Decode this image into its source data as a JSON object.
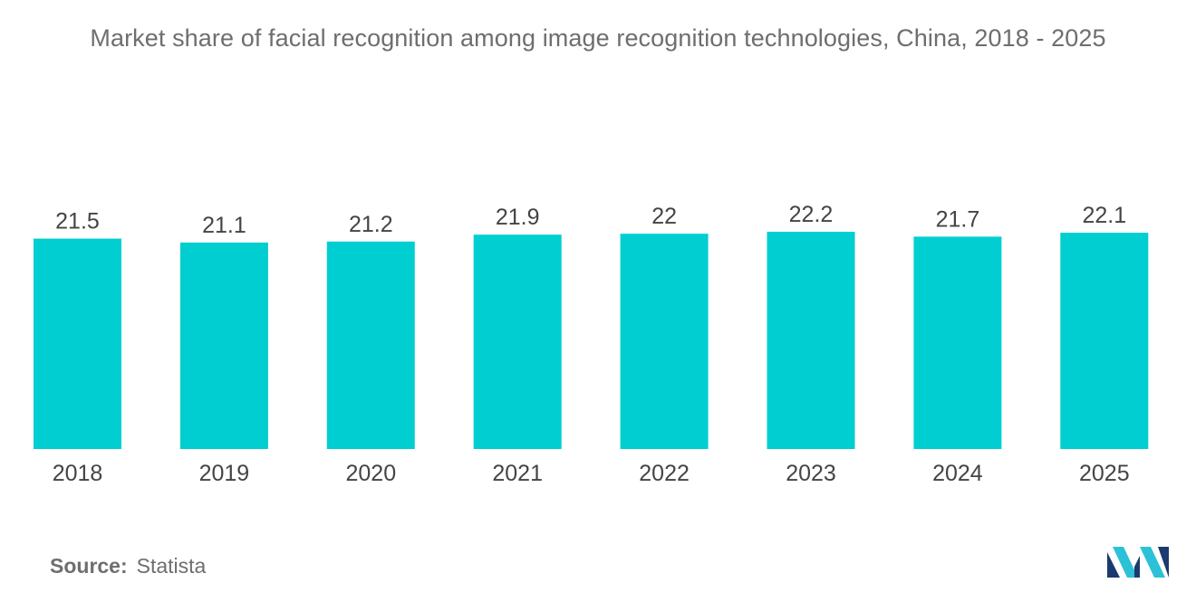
{
  "chart_data": {
    "type": "bar",
    "title": "Market share of facial recognition among image recognition technologies, China, 2018 - 2025",
    "categories": [
      "2018",
      "2019",
      "2020",
      "2021",
      "2022",
      "2023",
      "2024",
      "2025"
    ],
    "values": [
      21.5,
      21.1,
      21.2,
      21.9,
      22,
      22.2,
      21.7,
      22.1
    ],
    "value_labels": [
      "21.5",
      "21.1",
      "21.2",
      "21.9",
      "22",
      "22.2",
      "21.7",
      "22.1"
    ],
    "xlabel": "",
    "ylabel": "",
    "grid": false,
    "legend": "none",
    "bar_color": "#00ced1"
  },
  "source": {
    "label": "Source:",
    "value": "Statista"
  },
  "logo": {
    "icon": "mordor-intelligence-logo-icon",
    "colors": [
      "#1b3b6f",
      "#2cc1d6"
    ]
  }
}
